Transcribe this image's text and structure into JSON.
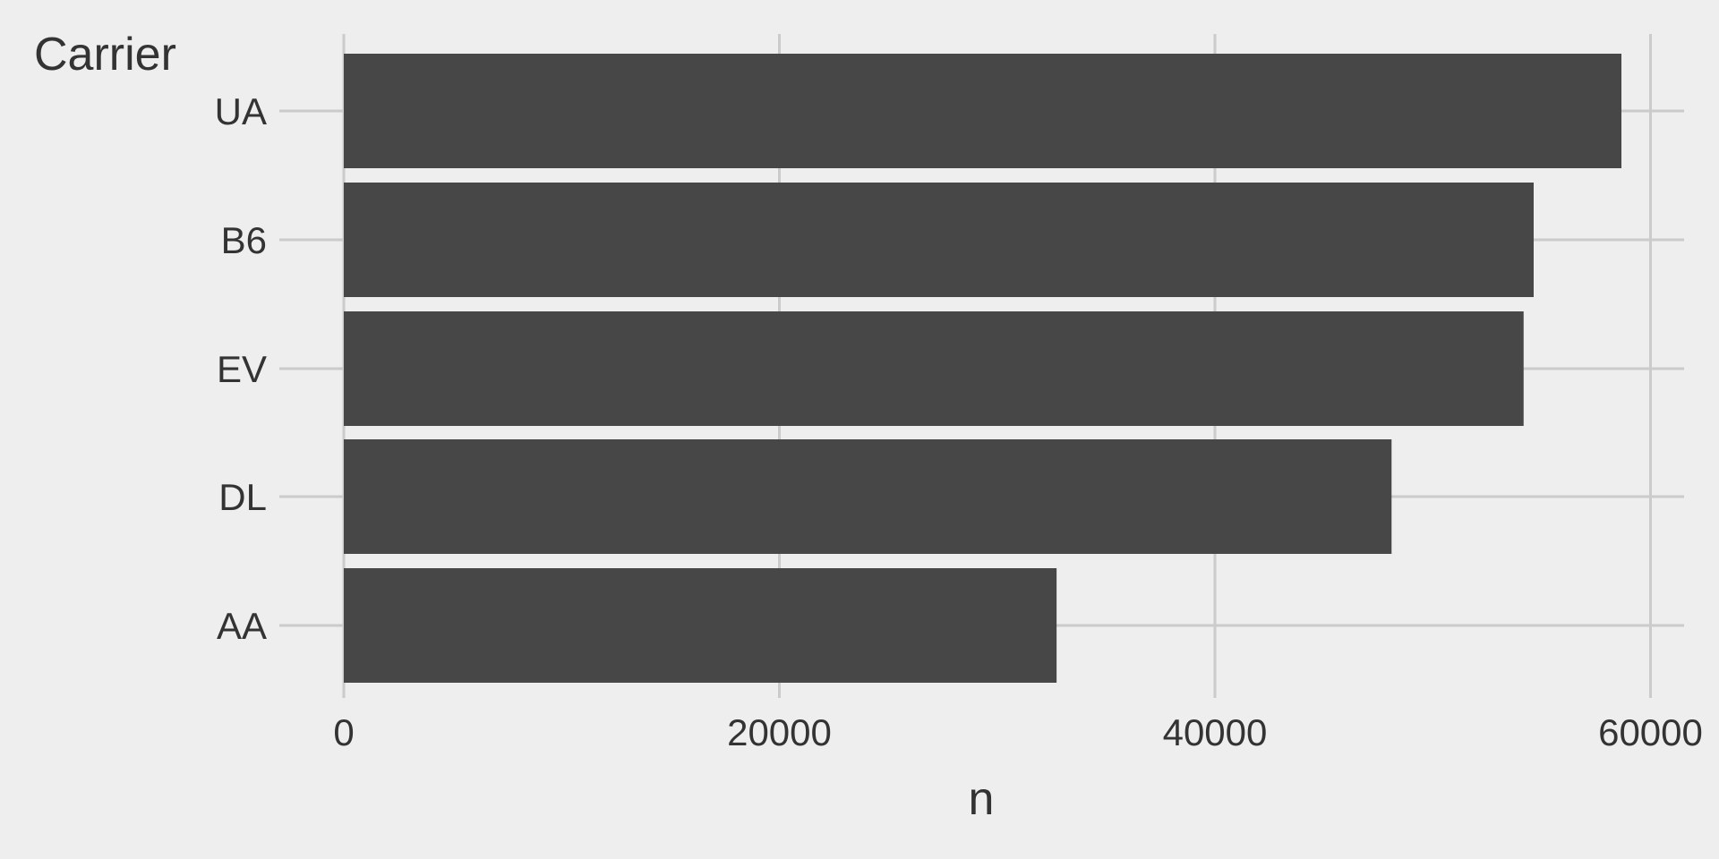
{
  "chart_data": {
    "type": "bar",
    "orientation": "horizontal",
    "title": "",
    "xlabel": "n",
    "ylabel": "Carrier",
    "categories": [
      "AA",
      "DL",
      "EV",
      "B6",
      "UA"
    ],
    "values": [
      32729,
      48110,
      54173,
      54635,
      58665
    ],
    "xlim": [
      0,
      61600
    ],
    "xticks": [
      0,
      20000,
      40000,
      60000
    ],
    "xtick_labels": [
      "0",
      "20000",
      "40000",
      "60000"
    ],
    "grid": true,
    "legend": "none",
    "colors": {
      "background": "#eeeeee",
      "bar": "#474747",
      "grid": "#cbcbcb",
      "text": "#333333"
    }
  }
}
